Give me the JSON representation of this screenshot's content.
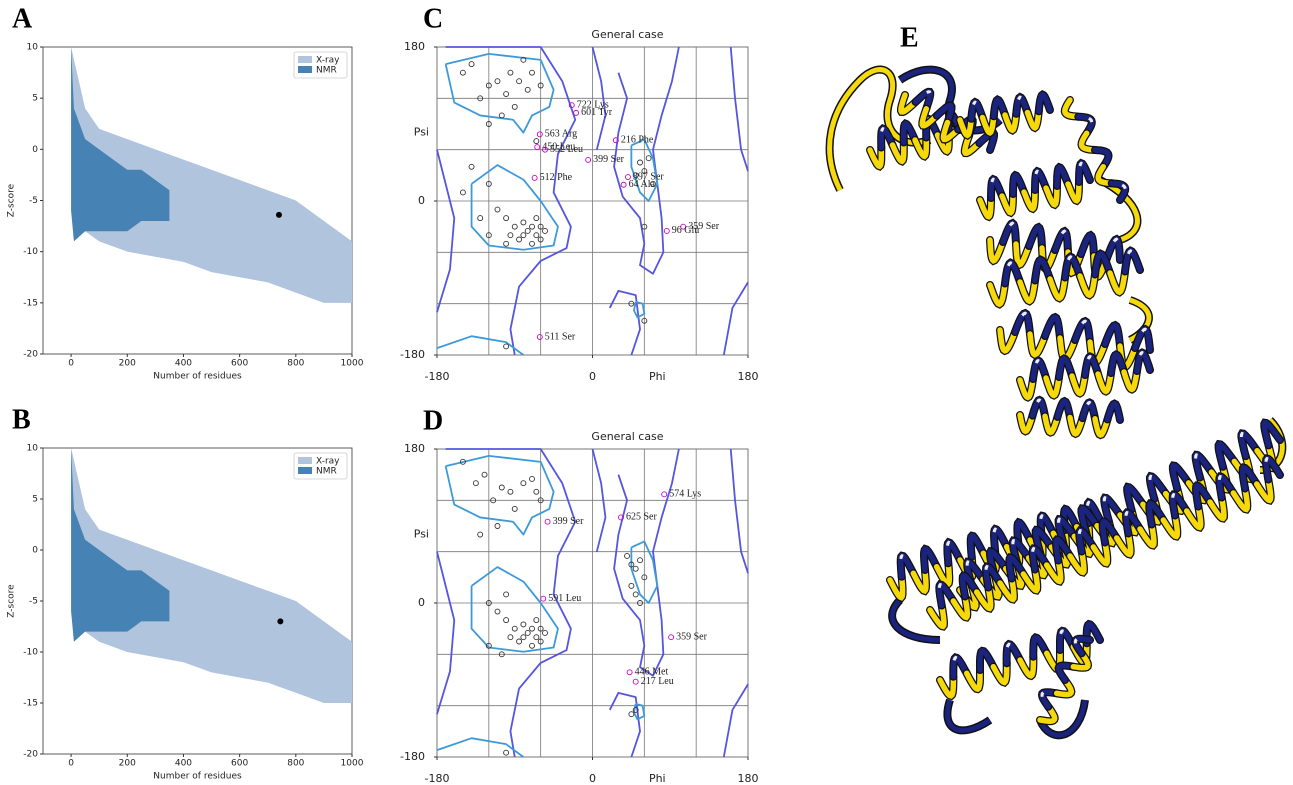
{
  "chart_data": [
    {
      "type": "scatter",
      "label": "A",
      "xlabel": "Number of residues",
      "ylabel": "Z-score",
      "xlim": [
        -100,
        1000
      ],
      "ylim": [
        -20,
        10
      ],
      "xticks": [
        0,
        200,
        400,
        600,
        800,
        1000
      ],
      "yticks": [
        -20,
        -15,
        -10,
        -5,
        0,
        5,
        10
      ],
      "legend": "upper right",
      "bands": [
        {
          "name": "X-ray",
          "color": "#b0c4de",
          "x": [
            0,
            50,
            100,
            200,
            300,
            400,
            500,
            600,
            700,
            800,
            900,
            1000
          ],
          "upper": [
            10,
            4,
            2,
            1,
            0,
            -1,
            -2,
            -3,
            -4,
            -5,
            -7,
            -9
          ],
          "lower": [
            -6,
            -8,
            -9,
            -10,
            -10.5,
            -11,
            -12,
            -12.5,
            -13,
            -14,
            -15,
            -15
          ]
        },
        {
          "name": "NMR",
          "color": "#4682b4",
          "x": [
            0,
            10,
            50,
            100,
            150,
            200,
            250,
            300,
            350
          ],
          "upper": [
            10,
            4,
            1,
            0,
            -1,
            -2,
            -2,
            -3,
            -4
          ],
          "lower": [
            -6,
            -9,
            -8,
            -8,
            -8,
            -8,
            -7,
            -7,
            -7
          ]
        }
      ],
      "series": [
        {
          "color": "#000000",
          "x": [
            740
          ],
          "values": [
            -6.4
          ]
        }
      ]
    },
    {
      "type": "scatter",
      "label": "B",
      "xlabel": "Number of residues",
      "ylabel": "Z-score",
      "xlim": [
        -100,
        1000
      ],
      "ylim": [
        -20,
        10
      ],
      "xticks": [
        0,
        200,
        400,
        600,
        800,
        1000
      ],
      "yticks": [
        -20,
        -15,
        -10,
        -5,
        0,
        5,
        10
      ],
      "legend": "upper right",
      "bands": [
        {
          "name": "X-ray",
          "color": "#b0c4de",
          "x": [
            0,
            50,
            100,
            200,
            300,
            400,
            500,
            600,
            700,
            800,
            900,
            1000
          ],
          "upper": [
            10,
            4,
            2,
            1,
            0,
            -1,
            -2,
            -3,
            -4,
            -5,
            -7,
            -9
          ],
          "lower": [
            -6,
            -8,
            -9,
            -10,
            -10.5,
            -11,
            -12,
            -12.5,
            -13,
            -14,
            -15,
            -15
          ]
        },
        {
          "name": "NMR",
          "color": "#4682b4",
          "x": [
            0,
            10,
            50,
            100,
            150,
            200,
            250,
            300,
            350
          ],
          "upper": [
            10,
            4,
            1,
            0,
            -1,
            -2,
            -2,
            -3,
            -4
          ],
          "lower": [
            -6,
            -9,
            -8,
            -8,
            -8,
            -8,
            -7,
            -7,
            -7
          ]
        }
      ],
      "series": [
        {
          "color": "#000000",
          "x": [
            745
          ],
          "values": [
            -7
          ]
        }
      ]
    },
    {
      "type": "scatter",
      "label": "C",
      "title": "General case",
      "xlabel": "Phi",
      "ylabel": "Psi",
      "xlim": [
        -180,
        180
      ],
      "ylim": [
        -180,
        180
      ],
      "xticks": [
        -180,
        0,
        180
      ],
      "yticks": [
        -180,
        0,
        180
      ],
      "xgrid": [
        -120,
        -60,
        0,
        60,
        120
      ],
      "ygrid": [
        -120,
        -60,
        0,
        60,
        120
      ],
      "series": [
        {
          "color": "#333333",
          "x": [
            -150,
            -140,
            -130,
            -120,
            -110,
            -100,
            -95,
            -85,
            -80,
            -75,
            -70,
            -60,
            -90,
            -105,
            -120,
            -65,
            -140,
            -150,
            -120,
            -110,
            -100,
            -90,
            -80,
            -75,
            -70,
            -65,
            -60,
            -70,
            -80,
            -60,
            -65,
            -55,
            -85,
            -95,
            -100,
            -120,
            -130,
            55,
            60,
            65,
            50,
            70,
            60,
            45,
            60,
            -100
          ],
          "values": [
            150,
            160,
            120,
            135,
            140,
            125,
            150,
            140,
            165,
            130,
            150,
            135,
            110,
            100,
            90,
            70,
            40,
            10,
            20,
            -10,
            -20,
            -30,
            -40,
            -35,
            -30,
            -40,
            -45,
            -50,
            -25,
            -30,
            -20,
            -35,
            -45,
            -40,
            -50,
            -40,
            -20,
            45,
            35,
            50,
            30,
            20,
            -30,
            -120,
            -140,
            -170
          ]
        },
        {
          "color": "#cc00cc",
          "x": [
            -24,
            -19,
            -61,
            -64,
            -55,
            -5,
            27,
            -67,
            41,
            36,
            105,
            86,
            -61
          ],
          "values": [
            112,
            103,
            78,
            63,
            60,
            48,
            71,
            27,
            28,
            19,
            -30,
            -35,
            -159
          ],
          "labels": [
            "722 Lys",
            "601 Tyr",
            "563 Arg",
            "450 Leu",
            "552 Leu",
            "399 Ser",
            "216 Phe",
            "512 Phe",
            "397 Ser",
            "64 Ala",
            "359 Ser",
            "96 Glu",
            "511 Ser"
          ]
        }
      ]
    },
    {
      "type": "scatter",
      "label": "D",
      "title": "General case",
      "xlabel": "Phi",
      "ylabel": "Psi",
      "xlim": [
        -180,
        180
      ],
      "ylim": [
        -180,
        180
      ],
      "xticks": [
        -180,
        0,
        180
      ],
      "yticks": [
        -180,
        0,
        180
      ],
      "xgrid": [
        -120,
        -60,
        0,
        60,
        120
      ],
      "ygrid": [
        -120,
        -60,
        0,
        60,
        120
      ],
      "series": [
        {
          "color": "#333333",
          "x": [
            -150,
            -135,
            -125,
            -115,
            -105,
            -95,
            -90,
            -80,
            -70,
            -65,
            -60,
            -110,
            -130,
            -100,
            -120,
            -110,
            -100,
            -90,
            -80,
            -75,
            -70,
            -65,
            -60,
            -70,
            -80,
            -60,
            -65,
            -55,
            -85,
            -95,
            -105,
            -120,
            40,
            45,
            50,
            55,
            60,
            45,
            50,
            55,
            50,
            45,
            -100
          ],
          "values": [
            165,
            140,
            150,
            120,
            135,
            130,
            110,
            140,
            145,
            130,
            120,
            90,
            80,
            10,
            0,
            -10,
            -20,
            -30,
            -40,
            -35,
            -30,
            -40,
            -45,
            -50,
            -25,
            -30,
            -20,
            -35,
            -45,
            -40,
            -60,
            -50,
            55,
            45,
            40,
            50,
            30,
            20,
            10,
            0,
            -125,
            -130,
            -175
          ]
        },
        {
          "color": "#cc00cc",
          "x": [
            83,
            -52,
            33,
            -57,
            91,
            43,
            50
          ],
          "values": [
            127,
            95,
            100,
            5,
            -40,
            -81,
            -92
          ],
          "labels": [
            "574 Lys",
            "399 Ser",
            "625 Ser",
            "591 Leu",
            "359 Ser",
            "446 Met",
            "217 Leu"
          ]
        }
      ]
    }
  ],
  "panel_e": {
    "label": "E"
  }
}
